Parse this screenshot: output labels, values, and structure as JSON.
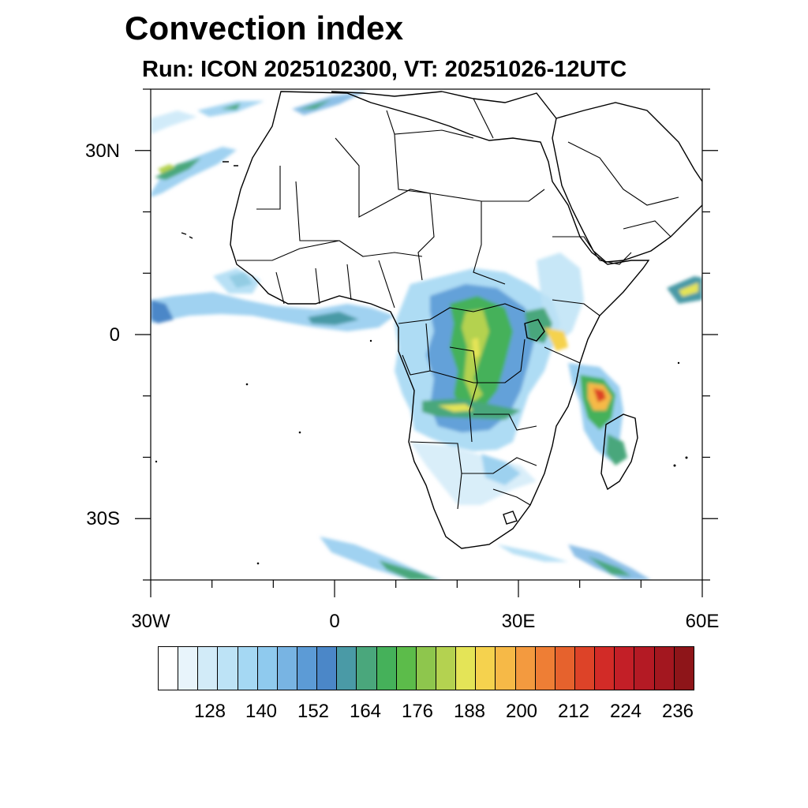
{
  "title": "Convection index",
  "subtitle": "Run: ICON 2025102300,  VT: 20251026-12UTC",
  "map": {
    "region": "Africa",
    "lon_range": [
      -30,
      60
    ],
    "lat_range": [
      -40,
      40
    ],
    "lat_ticks": [
      {
        "label": "30N",
        "value": 30
      },
      {
        "label": "0",
        "value": 0
      },
      {
        "label": "30S",
        "value": -30
      }
    ],
    "lon_ticks": [
      {
        "label": "30W",
        "value": -30
      },
      {
        "label": "0",
        "value": 0
      },
      {
        "label": "30E",
        "value": 30
      },
      {
        "label": "60E",
        "value": 60
      }
    ],
    "land_outline_color": "#000000",
    "background_color": "#ffffff"
  },
  "colorbar": {
    "colors": [
      "#ffffff",
      "#e8f4fb",
      "#d2ebf8",
      "#bde3f6",
      "#a5d8f3",
      "#8fcaee",
      "#78b4e3",
      "#5c9bd6",
      "#4b87c8",
      "#4a9aa6",
      "#4aa77c",
      "#45b15a",
      "#5cbc4a",
      "#8ec64d",
      "#b4d250",
      "#e4e457",
      "#f5d24e",
      "#f6b947",
      "#f39a3f",
      "#ee7e35",
      "#e6622d",
      "#dd4328",
      "#d22b27",
      "#c31f27",
      "#b41a24",
      "#a3171f",
      "#8e1519"
    ],
    "labels": [
      "128",
      "140",
      "152",
      "164",
      "176",
      "188",
      "200",
      "212",
      "224",
      "236"
    ]
  }
}
